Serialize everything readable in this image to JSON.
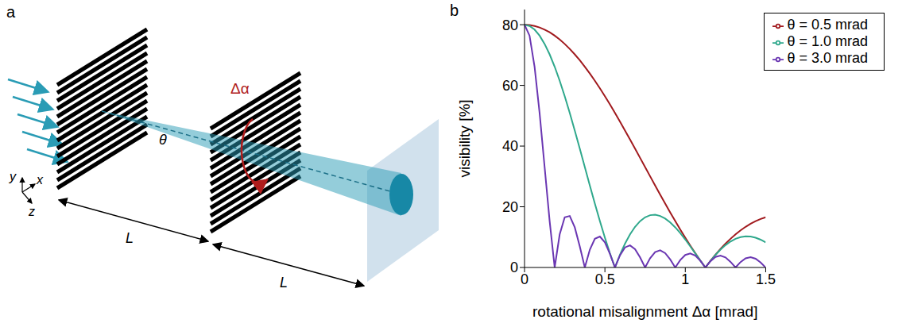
{
  "diagram": {
    "panel": "a",
    "angle": "θ",
    "rotation": "Δα",
    "distances": [
      "L",
      "L"
    ],
    "axes": [
      "x",
      "y",
      "z"
    ]
  },
  "chart_data": {
    "panel": "b",
    "type": "line",
    "x_label": "rotational misalignment Δα [mrad]",
    "y_label": "visibility [%]",
    "x": [
      0,
      0.03125,
      0.0625,
      0.09375,
      0.125,
      0.15625,
      0.1875,
      0.21875,
      0.25,
      0.28125,
      0.3125,
      0.34375,
      0.375,
      0.40625,
      0.4375,
      0.46875,
      0.5,
      0.53125,
      0.5625,
      0.59375,
      0.625,
      0.65625,
      0.6875,
      0.71875,
      0.75,
      0.78125,
      0.8125,
      0.84375,
      0.875,
      0.90625,
      0.9375,
      0.96875,
      1,
      1.03125,
      1.0625,
      1.09375,
      1.125,
      1.15625,
      1.1875,
      1.21875,
      1.25,
      1.28125,
      1.3125,
      1.34375,
      1.375,
      1.40625,
      1.4375,
      1.46875,
      1.5
    ],
    "series": [
      {
        "name": "θ = 0.5 mrad",
        "color": "#a11a1e",
        "values": [
          80,
          79.9,
          79.59,
          79.09,
          78.38,
          77.49,
          76.39,
          75.12,
          73.66,
          72.03,
          70.22,
          68.27,
          66.16,
          63.91,
          61.53,
          59.03,
          56.43,
          53.72,
          50.93,
          48.07,
          45.14,
          42.17,
          39.16,
          36.12,
          33.08,
          30.04,
          27.01,
          24.01,
          21.05,
          18.13,
          15.28,
          12.5,
          9.8,
          7.19,
          4.68,
          2.28,
          0,
          2.16,
          4.19,
          6.08,
          7.84,
          9.45,
          10.91,
          12.23,
          13.39,
          14.41,
          15.27,
          15.98,
          16.54
        ]
      },
      {
        "name": "θ = 1.0 mrad",
        "color": "#2fa88c",
        "values": [
          80,
          79.59,
          78.38,
          76.39,
          73.66,
          70.22,
          66.16,
          61.53,
          56.43,
          50.93,
          45.14,
          39.16,
          33.08,
          27.01,
          21.05,
          15.28,
          9.8,
          4.68,
          0,
          4.19,
          7.84,
          10.91,
          13.39,
          15.27,
          16.54,
          17.23,
          17.36,
          16.98,
          16.12,
          14.85,
          13.23,
          11.33,
          9.21,
          6.94,
          4.61,
          2.27,
          0,
          2.15,
          4.13,
          5.88,
          7.37,
          8.56,
          9.45,
          10.02,
          10.26,
          10.19,
          9.81,
          9.16,
          8.27
        ]
      },
      {
        "name": "θ = 3.0 mrad",
        "color": "#6a36b2",
        "values": [
          80,
          76.39,
          66.16,
          50.93,
          33.08,
          15.28,
          0,
          10.91,
          16.54,
          16.98,
          13.23,
          6.94,
          0,
          5.88,
          9.45,
          10.19,
          8.27,
          4.49,
          0,
          4.02,
          6.62,
          7.28,
          6.01,
          3.32,
          0,
          3.06,
          5.09,
          5.66,
          4.73,
          2.63,
          0,
          2.46,
          4.13,
          4.63,
          3.89,
          2.18,
          0,
          2.06,
          3.48,
          3.92,
          3.31,
          1.86,
          0,
          1.78,
          3.01,
          3.4,
          2.88,
          1.63,
          0
        ]
      }
    ],
    "xlim": [
      0,
      1.5
    ],
    "xticks": [
      0,
      0.5,
      1,
      1.5
    ],
    "ylim": [
      0,
      85
    ],
    "yticks": [
      0,
      20,
      40,
      60,
      80
    ],
    "grid": false,
    "legend": "upper right"
  }
}
